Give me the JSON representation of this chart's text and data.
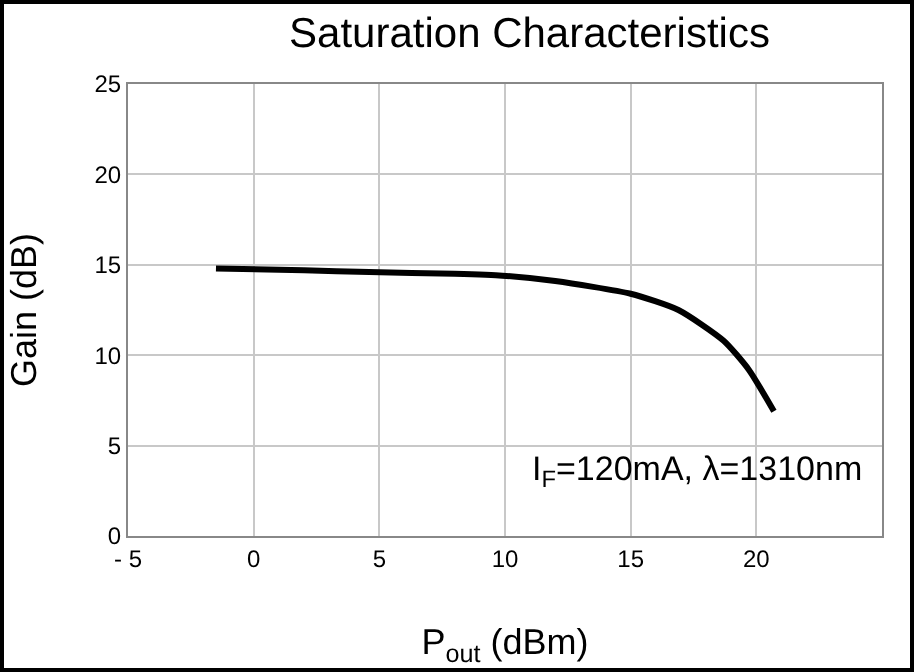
{
  "chart_data": {
    "type": "line",
    "title": "Saturation Characteristics",
    "xlabel": "P$_{out}$ (dBm)",
    "ylabel": "Gain (dB)",
    "x": [
      -1.5,
      2,
      4.6,
      8,
      9.9,
      12,
      15,
      16.9,
      18.7,
      19.7,
      20.7
    ],
    "series": [
      {
        "color": "#000000",
        "values": [
          14.8,
          14.7,
          14.6,
          14.5,
          14.4,
          14.1,
          13.4,
          12.5,
          10.8,
          9.2,
          6.9
        ]
      }
    ],
    "xlim": [
      -5,
      25
    ],
    "xticks": [
      {
        "value": -5,
        "label": "- 5"
      },
      0,
      5,
      10,
      15,
      20,
      {
        "value": 25,
        "label": null
      }
    ],
    "ylim": [
      0,
      25
    ],
    "yticks": [
      0,
      5,
      10,
      15,
      20,
      25
    ],
    "grid": true,
    "legend": false,
    "marker": "none",
    "line_style": "solid",
    "annotations": [
      "I$_{F}$=120mA, λ=1310nm"
    ]
  }
}
